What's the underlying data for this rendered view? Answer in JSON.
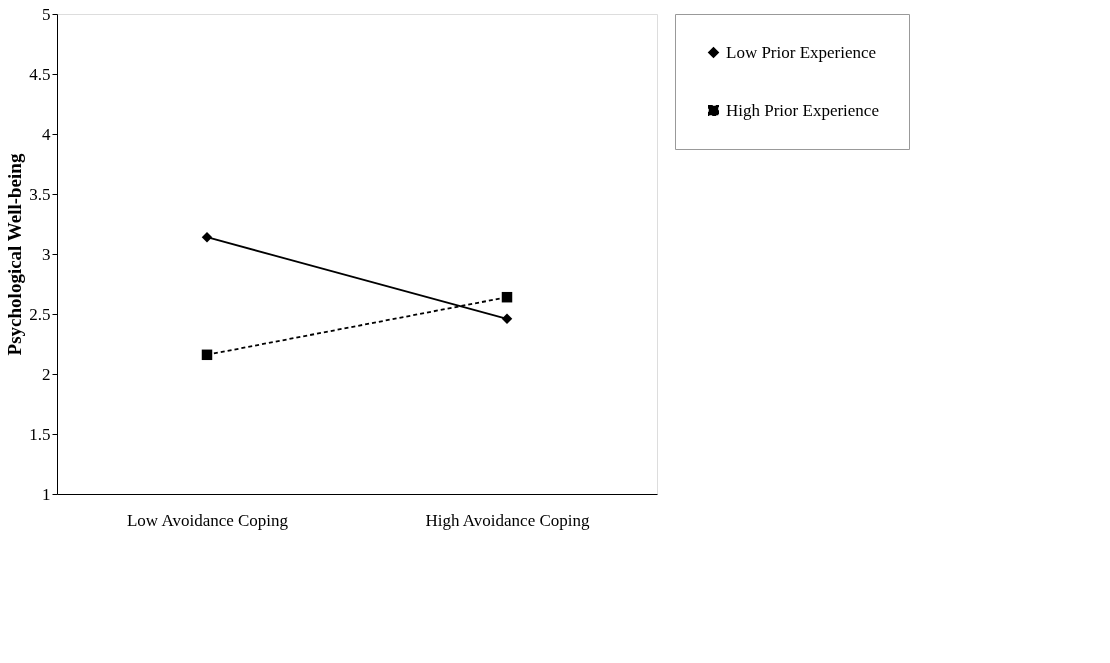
{
  "chart_data": {
    "type": "line",
    "ylabel": "Psychological Well-being",
    "categories": [
      "Low Avoidance Coping",
      "High Avoidance Coping"
    ],
    "series": [
      {
        "name": "Low Prior Experience",
        "color": "#000000",
        "values": [
          3.14,
          2.46
        ],
        "marker": "diamond",
        "line_style": "solid"
      },
      {
        "name": "High Prior Experience",
        "color": "#000000",
        "values": [
          2.16,
          2.64
        ],
        "marker": "square",
        "line_style": "dashed"
      }
    ],
    "ylim": [
      1,
      5
    ],
    "yticks": [
      1,
      1.5,
      2,
      2.5,
      3,
      3.5,
      4,
      4.5,
      5
    ],
    "grid": false,
    "legend": "right"
  }
}
